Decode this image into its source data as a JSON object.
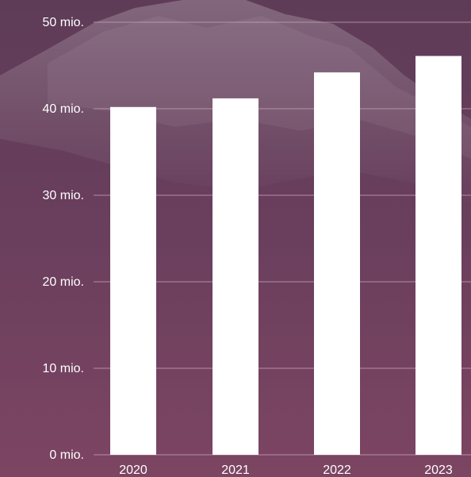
{
  "chart_data": {
    "type": "bar",
    "title": "",
    "xlabel": "",
    "ylabel": "",
    "categories": [
      "2020",
      "2021",
      "2022",
      "2023"
    ],
    "values": [
      40.2,
      41.2,
      44.2,
      46.1
    ],
    "ylim": [
      0,
      50
    ],
    "yticks": [
      0,
      10,
      20,
      30,
      40,
      50
    ],
    "ytick_labels": [
      "0 mio.",
      "10 mio.",
      "20 mio.",
      "30 mio.",
      "40 mio.",
      "50 mio."
    ],
    "grid": true,
    "legend": "none"
  },
  "colors": {
    "bar": "#ffffff",
    "gridline": "#c9a6b8",
    "text": "#ffffff",
    "bg_top": "#5e3c58",
    "bg_mid": "#6a3f5d",
    "bg_bottom": "#7c4562",
    "mountain": "#8a5a72",
    "snow": "#b58ea2"
  }
}
